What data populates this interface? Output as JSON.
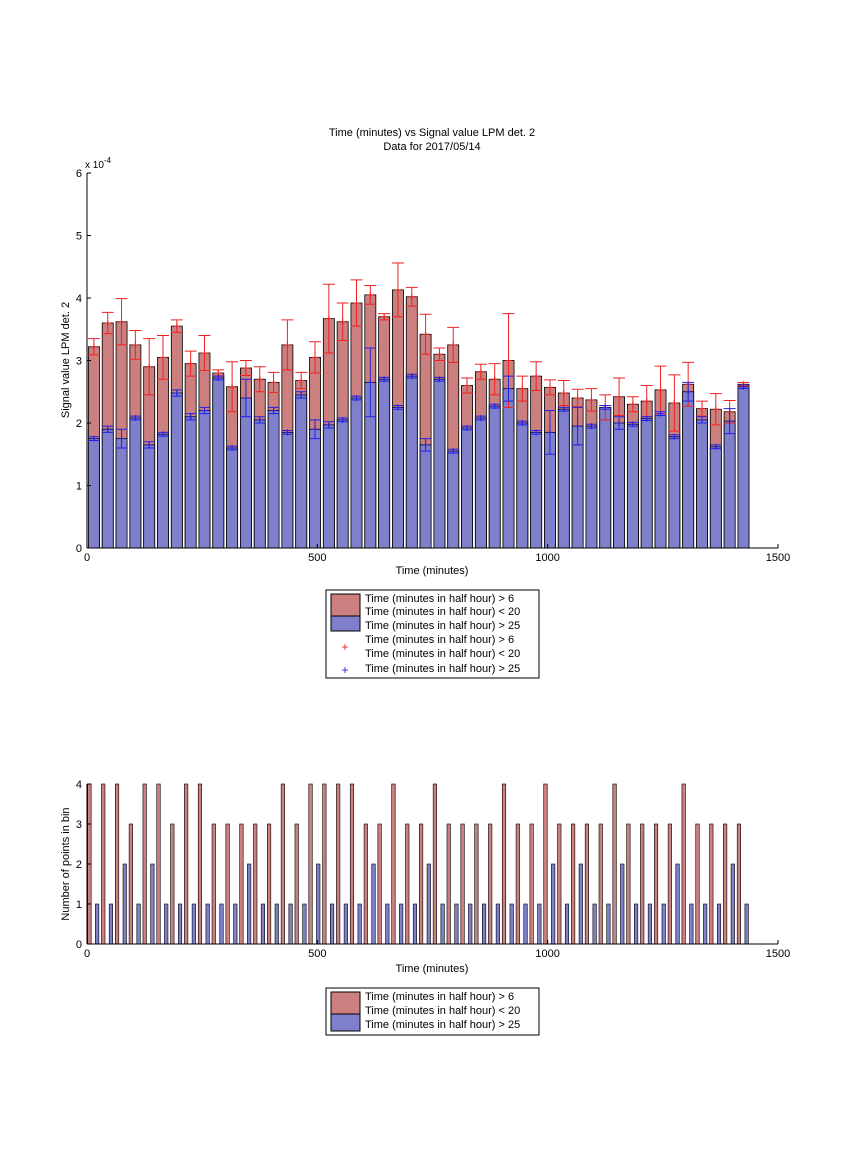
{
  "colors": {
    "red_fill": "#cc7f7f",
    "blue_fill": "#7f7fcc",
    "red_err": "#ee2222",
    "blue_err": "#2222dd",
    "edge": "#000000"
  },
  "legend_labels": {
    "line1": "Time (minutes in half hour) > 6",
    "line2": "Time (minutes in half hour) < 20",
    "line3": "Time (minutes in half hour) > 25"
  },
  "chart_data": [
    {
      "type": "bar",
      "title": "Time (minutes) vs Signal value LPM det. 2",
      "subtitle": "Data for 2017/05/14",
      "xlabel": "Time (minutes)",
      "ylabel": "Signal value LPM det. 2",
      "y_exponent_label": "x 10",
      "y_exponent_power": "-4",
      "xlim": [
        0,
        1500
      ],
      "ylim": [
        0,
        6
      ],
      "xticks": [
        "0",
        "500",
        "1000",
        "1500"
      ],
      "yticks": [
        "0",
        "1",
        "2",
        "3",
        "4",
        "5",
        "6"
      ],
      "grid": false,
      "legend_position": "below",
      "x": [
        15,
        45,
        75,
        105,
        135,
        165,
        195,
        225,
        255,
        285,
        315,
        345,
        375,
        405,
        435,
        465,
        495,
        525,
        555,
        585,
        615,
        645,
        675,
        705,
        735,
        765,
        795,
        825,
        855,
        885,
        915,
        945,
        975,
        1005,
        1035,
        1065,
        1095,
        1125,
        1155,
        1185,
        1215,
        1245,
        1275,
        1305,
        1335,
        1365,
        1395,
        1425
      ],
      "series": [
        {
          "name": "Time (minutes in half hour) > 6 Time (minutes in half hour) < 20",
          "values": [
            3.22,
            3.6,
            3.62,
            3.25,
            2.9,
            3.05,
            3.55,
            2.95,
            3.12,
            2.8,
            2.58,
            2.88,
            2.7,
            2.65,
            3.25,
            2.68,
            3.05,
            3.67,
            3.62,
            3.92,
            4.05,
            3.7,
            4.13,
            4.02,
            3.42,
            3.1,
            3.25,
            2.6,
            2.82,
            2.7,
            3.0,
            2.55,
            2.75,
            2.57,
            2.48,
            2.4,
            2.37,
            2.25,
            2.42,
            2.3,
            2.35,
            2.53,
            2.32,
            2.62,
            2.23,
            2.22,
            2.18,
            2.62
          ],
          "error": [
            0.13,
            0.17,
            0.37,
            0.23,
            0.45,
            0.35,
            0.1,
            0.2,
            0.28,
            0.05,
            0.4,
            0.12,
            0.2,
            0.16,
            0.4,
            0.13,
            0.25,
            0.55,
            0.3,
            0.37,
            0.15,
            0.05,
            0.43,
            0.15,
            0.32,
            0.1,
            0.28,
            0.12,
            0.12,
            0.25,
            0.75,
            0.2,
            0.23,
            0.12,
            0.2,
            0.14,
            0.18,
            0.2,
            0.3,
            0.12,
            0.25,
            0.38,
            0.45,
            0.35,
            0.12,
            0.25,
            0.18,
            0.03
          ]
        },
        {
          "name": "Time (minutes in half hour) > 25",
          "values": [
            1.75,
            1.9,
            1.75,
            2.08,
            1.65,
            1.82,
            2.48,
            2.1,
            2.2,
            2.72,
            1.6,
            2.4,
            2.05,
            2.2,
            1.85,
            2.45,
            1.9,
            1.97,
            2.05,
            2.4,
            2.65,
            2.7,
            2.25,
            2.75,
            1.65,
            2.7,
            1.55,
            1.92,
            2.08,
            2.27,
            2.55,
            2.0,
            1.85,
            1.85,
            2.22,
            1.95,
            1.95,
            2.25,
            2.0,
            1.98,
            2.07,
            2.15,
            1.78,
            2.5,
            2.05,
            1.62,
            2.03,
            2.58
          ],
          "error": [
            0.03,
            0.05,
            0.15,
            0.03,
            0.05,
            0.03,
            0.05,
            0.05,
            0.05,
            0.03,
            0.03,
            0.3,
            0.05,
            0.05,
            0.03,
            0.05,
            0.15,
            0.05,
            0.03,
            0.03,
            0.55,
            0.03,
            0.03,
            0.03,
            0.1,
            0.03,
            0.03,
            0.03,
            0.03,
            0.03,
            0.2,
            0.03,
            0.03,
            0.35,
            0.03,
            0.3,
            0.03,
            0.03,
            0.1,
            0.03,
            0.03,
            0.03,
            0.03,
            0.15,
            0.05,
            0.03,
            0.2,
            0.03
          ]
        }
      ]
    },
    {
      "type": "bar",
      "title": "",
      "xlabel": "Time (minutes)",
      "ylabel": "Number of points in bin",
      "xlim": [
        0,
        1500
      ],
      "ylim": [
        0,
        4
      ],
      "xticks": [
        "0",
        "500",
        "1000",
        "1500"
      ],
      "yticks": [
        "0",
        "1",
        "2",
        "3",
        "4"
      ],
      "grid": false,
      "legend_position": "below",
      "x": [
        15,
        45,
        75,
        105,
        135,
        165,
        195,
        225,
        255,
        285,
        315,
        345,
        375,
        405,
        435,
        465,
        495,
        525,
        555,
        585,
        615,
        645,
        675,
        705,
        735,
        765,
        795,
        825,
        855,
        885,
        915,
        945,
        975,
        1005,
        1035,
        1065,
        1095,
        1125,
        1155,
        1185,
        1215,
        1245,
        1275,
        1305,
        1335,
        1365,
        1395,
        1425
      ],
      "series": [
        {
          "name": "Time (minutes in half hour) > 6 Time (minutes in half hour) < 20",
          "values": [
            4,
            4,
            4,
            3,
            4,
            4,
            3,
            4,
            4,
            3,
            3,
            3,
            3,
            3,
            4,
            3,
            4,
            4,
            4,
            4,
            3,
            3,
            4,
            3,
            3,
            4,
            3,
            3,
            3,
            3,
            4,
            3,
            3,
            4,
            3,
            3,
            3,
            3,
            4,
            3,
            3,
            3,
            3,
            4,
            3,
            3,
            3,
            3
          ]
        },
        {
          "name": "Time (minutes in half hour) > 25",
          "values": [
            1,
            1,
            2,
            1,
            2,
            1,
            1,
            1,
            1,
            1,
            1,
            2,
            1,
            1,
            1,
            1,
            2,
            1,
            1,
            1,
            2,
            1,
            1,
            1,
            2,
            1,
            1,
            1,
            1,
            1,
            1,
            1,
            1,
            2,
            1,
            2,
            1,
            1,
            2,
            1,
            1,
            1,
            2,
            1,
            1,
            1,
            2,
            1
          ]
        }
      ]
    }
  ]
}
